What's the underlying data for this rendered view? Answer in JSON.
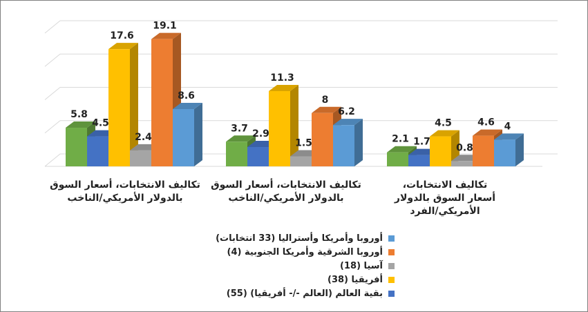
{
  "chart_data": {
    "type": "bar",
    "categories": [
      "تكاليف الانتخابات، أسعار السوق\nبالدولار الأمريكي/الناخب",
      "تكاليف الانتخابات، أسعار السوق\nبالدولار الأمريكي/الناخب",
      "تكاليف الانتخابات،\nأسعار السوق بالدولار\nالأمريكي/الفرد"
    ],
    "series": [
      {
        "name": "بقية العالم  (العالم -/- أفريقيا) (55)",
        "color": "#70ad47",
        "values": [
          5.8,
          3.7,
          2.1
        ]
      },
      {
        "name": "أفريقيا (38)",
        "color": "#4472c4",
        "values": [
          4.5,
          2.9,
          1.7
        ]
      },
      {
        "name": "آسيا (18)",
        "color": "#ffc000",
        "values": [
          17.6,
          11.3,
          4.5
        ]
      },
      {
        "name": "أوروبا الشرقية وأمريكا الجنوبية (4)",
        "color": "#a5a5a5",
        "values": [
          2.4,
          1.5,
          0.8
        ]
      },
      {
        "name": "أوروبا وأمريكا وأستراليا (33 انتخابات)",
        "color": "#ed7d31",
        "values": [
          19.1,
          8,
          4.6
        ]
      },
      {
        "name": "",
        "color": "#5b9bd5",
        "values": [
          8.6,
          6.2,
          4
        ]
      }
    ],
    "value_labels": [
      [
        "5.8",
        "3.7",
        "2.1"
      ],
      [
        "4.5",
        "2.9",
        "1.7"
      ],
      [
        "17.6",
        "11.3",
        "4.5"
      ],
      [
        "2.4",
        "1.5",
        "0.8"
      ],
      [
        "19.1",
        "8",
        "4.6"
      ],
      [
        "8.6",
        "6.2",
        "4"
      ]
    ],
    "ylim": [
      0,
      20
    ],
    "grid": true,
    "legend_position": "bottom",
    "title": "",
    "xlabel": "",
    "ylabel": ""
  },
  "legend": [
    {
      "label": "أوروبا وأمريكا وأستراليا (33 انتخابات)",
      "color": "#5b9bd5"
    },
    {
      "label": "أوروبا الشرقية وأمريكا الجنوبية (4)",
      "color": "#ed7d31"
    },
    {
      "label": "آسيا (18)",
      "color": "#a5a5a5"
    },
    {
      "label": "أفريقيا (38)",
      "color": "#ffc000"
    },
    {
      "label": "بقية العالم  (العالم -/- أفريقيا) (55)",
      "color": "#4472c4"
    }
  ]
}
